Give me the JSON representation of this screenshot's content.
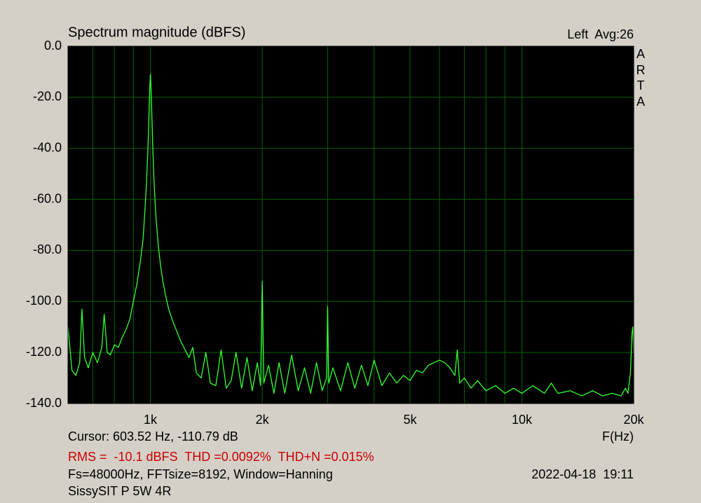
{
  "chart_data": {
    "type": "line",
    "title": "Spectrum magnitude (dBFS)",
    "channel_info": "Left  Avg:26",
    "brand": "ARTA",
    "x_label": "F(Hz)",
    "cursor": "Cursor: 603.52 Hz, -110.79 dB",
    "measurement": "RMS =  -10.1 dBFS  THD =0.0092%  THD+N =0.015%",
    "settings": "Fs=48000Hz, FFTsize=8192, Window=Hanning",
    "timestamp": "2022-04-18  19:11",
    "device": "SissySIT P 5W 4R",
    "xscale": "log",
    "grid": true,
    "color": "#33ff33",
    "xlim": [
      600,
      20000
    ],
    "ylim": [
      -140,
      0
    ],
    "xticks": [
      {
        "value": 1000,
        "label": "1k"
      },
      {
        "value": 2000,
        "label": "2k"
      },
      {
        "value": 5000,
        "label": "5k"
      },
      {
        "value": 10000,
        "label": "10k"
      },
      {
        "value": 20000,
        "label": "20k"
      }
    ],
    "minor_xticks": [
      700,
      800,
      900,
      3000,
      4000,
      6000,
      7000,
      8000,
      9000
    ],
    "yticks": [
      {
        "value": 0,
        "label": "0.0"
      },
      {
        "value": -20,
        "label": "-20.0"
      },
      {
        "value": -40,
        "label": "-40.0"
      },
      {
        "value": -60,
        "label": "-60.0"
      },
      {
        "value": -80,
        "label": "-80.0"
      },
      {
        "value": -100,
        "label": "-100.0"
      },
      {
        "value": -120,
        "label": "-120.0"
      },
      {
        "value": -140,
        "label": "-140.0"
      }
    ],
    "x": [
      600,
      615,
      630,
      645,
      654,
      665,
      680,
      700,
      720,
      740,
      751,
      765,
      780,
      800,
      820,
      840,
      860,
      880,
      900,
      920,
      940,
      955,
      965,
      975,
      985,
      995,
      1000,
      1005,
      1015,
      1025,
      1035,
      1050,
      1065,
      1080,
      1100,
      1120,
      1150,
      1180,
      1210,
      1240,
      1270,
      1300,
      1330,
      1370,
      1410,
      1450,
      1500,
      1550,
      1600,
      1650,
      1700,
      1760,
      1820,
      1880,
      1940,
      1980,
      2000,
      2020,
      2080,
      2150,
      2220,
      2300,
      2400,
      2500,
      2600,
      2700,
      2800,
      2900,
      2980,
      3000,
      3020,
      3100,
      3250,
      3400,
      3550,
      3700,
      3850,
      4000,
      4200,
      4400,
      4600,
      4800,
      5000,
      5200,
      5400,
      5600,
      5800,
      6000,
      6200,
      6400,
      6600,
      6700,
      6800,
      7000,
      7300,
      7600,
      8000,
      8500,
      9000,
      9500,
      10000,
      10700,
      11500,
      12000,
      12500,
      13500,
      14500,
      15500,
      16500,
      17500,
      18500,
      19000,
      19300,
      19600,
      19800,
      19900,
      20000
    ],
    "values": [
      -110,
      -127,
      -129,
      -124,
      -103,
      -122,
      -126,
      -120,
      -124,
      -118,
      -105,
      -120,
      -121,
      -117,
      -118,
      -114,
      -111,
      -107,
      -100,
      -93,
      -84,
      -76,
      -66,
      -55,
      -40,
      -18,
      -11,
      -18,
      -40,
      -56,
      -67,
      -78,
      -86,
      -92,
      -98,
      -103,
      -108,
      -112,
      -116,
      -119,
      -122,
      -118,
      -128,
      -130,
      -120,
      -132,
      -133,
      -119,
      -134,
      -131,
      -120,
      -134,
      -122,
      -135,
      -124,
      -133,
      -92,
      -132,
      -125,
      -136,
      -124,
      -136,
      -121,
      -135,
      -126,
      -136,
      -124,
      -135,
      -130,
      -102,
      -132,
      -126,
      -135,
      -124,
      -134,
      -125,
      -133,
      -123,
      -133,
      -128,
      -132,
      -129,
      -131,
      -127,
      -128,
      -125,
      -124,
      -123,
      -124,
      -126,
      -129,
      -119,
      -132,
      -130,
      -134,
      -131,
      -135,
      -133,
      -136,
      -134,
      -136,
      -133,
      -136,
      -132,
      -136,
      -135,
      -137,
      -135,
      -137,
      -136,
      -137,
      -134,
      -136,
      -128,
      -112,
      -110,
      -120
    ]
  }
}
